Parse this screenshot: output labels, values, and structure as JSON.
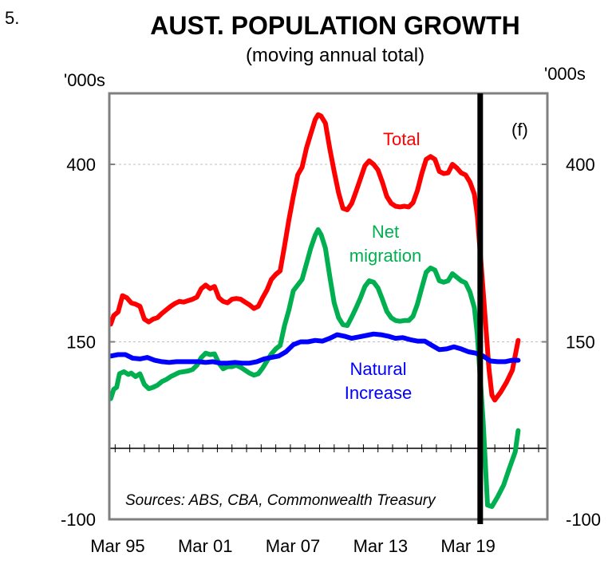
{
  "chart_number": "5.",
  "chart_data": {
    "type": "line",
    "title": "AUST. POPULATION GROWTH",
    "subtitle": "(moving annual total)",
    "y_unit_left": "'000s",
    "y_unit_right": "'000s",
    "ylim": [
      -100,
      500
    ],
    "xlim": [
      1994.6,
      2024.6
    ],
    "y_ticks": [
      -100,
      150,
      400
    ],
    "y_tick_labels": [
      "-100",
      "150",
      "400"
    ],
    "x_ticks": [
      1995.17,
      2001.17,
      2007.17,
      2013.17,
      2019.17
    ],
    "x_tick_labels": [
      "Mar 95",
      "Mar 01",
      "Mar 07",
      "Mar 13",
      "Mar 19"
    ],
    "grid": "horizontal dotted at 150 and 400",
    "zero_line": 0,
    "forecast_line_x": 2020.0,
    "forecast_label": "(f)",
    "source": "Sources: ABS, CBA, Commonwealth Treasury",
    "series": [
      {
        "name": "Total",
        "label": "Total",
        "color": "#ff0000",
        "points": [
          [
            1994.7,
            175
          ],
          [
            1994.9,
            187
          ],
          [
            1995.2,
            192
          ],
          [
            1995.5,
            215
          ],
          [
            1995.8,
            212
          ],
          [
            1996.1,
            205
          ],
          [
            1996.4,
            203
          ],
          [
            1996.7,
            200
          ],
          [
            1997.0,
            182
          ],
          [
            1997.3,
            178
          ],
          [
            1997.6,
            182
          ],
          [
            1997.9,
            184
          ],
          [
            1998.2,
            190
          ],
          [
            1998.5,
            195
          ],
          [
            1998.8,
            200
          ],
          [
            1999.1,
            204
          ],
          [
            1999.4,
            207
          ],
          [
            1999.7,
            206
          ],
          [
            2000.0,
            208
          ],
          [
            2000.3,
            210
          ],
          [
            2000.6,
            213
          ],
          [
            2000.9,
            225
          ],
          [
            2001.2,
            230
          ],
          [
            2001.5,
            225
          ],
          [
            2001.8,
            228
          ],
          [
            2002.1,
            212
          ],
          [
            2002.4,
            207
          ],
          [
            2002.7,
            205
          ],
          [
            2003.0,
            210
          ],
          [
            2003.3,
            211
          ],
          [
            2003.6,
            210
          ],
          [
            2003.9,
            206
          ],
          [
            2004.2,
            202
          ],
          [
            2004.5,
            197
          ],
          [
            2004.8,
            200
          ],
          [
            2005.1,
            212
          ],
          [
            2005.4,
            223
          ],
          [
            2005.7,
            238
          ],
          [
            2006.0,
            245
          ],
          [
            2006.3,
            250
          ],
          [
            2006.6,
            285
          ],
          [
            2006.9,
            322
          ],
          [
            2007.2,
            355
          ],
          [
            2007.5,
            385
          ],
          [
            2007.8,
            396
          ],
          [
            2008.1,
            423
          ],
          [
            2008.4,
            443
          ],
          [
            2008.7,
            463
          ],
          [
            2008.9,
            470
          ],
          [
            2009.1,
            468
          ],
          [
            2009.4,
            458
          ],
          [
            2009.7,
            422
          ],
          [
            2010.0,
            390
          ],
          [
            2010.3,
            360
          ],
          [
            2010.6,
            338
          ],
          [
            2010.9,
            336
          ],
          [
            2011.2,
            345
          ],
          [
            2011.5,
            362
          ],
          [
            2011.8,
            380
          ],
          [
            2012.1,
            398
          ],
          [
            2012.4,
            405
          ],
          [
            2012.7,
            400
          ],
          [
            2013.0,
            392
          ],
          [
            2013.3,
            375
          ],
          [
            2013.6,
            355
          ],
          [
            2013.9,
            345
          ],
          [
            2014.2,
            341
          ],
          [
            2014.5,
            340
          ],
          [
            2014.8,
            341
          ],
          [
            2015.1,
            340
          ],
          [
            2015.4,
            346
          ],
          [
            2015.7,
            363
          ],
          [
            2016.0,
            387
          ],
          [
            2016.3,
            407
          ],
          [
            2016.6,
            411
          ],
          [
            2016.9,
            407
          ],
          [
            2017.2,
            390
          ],
          [
            2017.5,
            387
          ],
          [
            2017.8,
            388
          ],
          [
            2018.1,
            400
          ],
          [
            2018.4,
            395
          ],
          [
            2018.7,
            388
          ],
          [
            2019.0,
            385
          ],
          [
            2019.3,
            375
          ],
          [
            2019.6,
            358
          ],
          [
            2019.8,
            328
          ],
          [
            2020.2,
            222
          ],
          [
            2020.6,
            112
          ],
          [
            2020.8,
            75
          ],
          [
            2021.0,
            68
          ],
          [
            2021.4,
            79
          ],
          [
            2021.8,
            93
          ],
          [
            2022.2,
            110
          ],
          [
            2022.6,
            152
          ]
        ]
      },
      {
        "name": "Net migration",
        "label_line1": "Net",
        "label_line2": "migration",
        "color": "#00b050",
        "points": [
          [
            1994.7,
            70
          ],
          [
            1994.9,
            83
          ],
          [
            1995.1,
            86
          ],
          [
            1995.3,
            105
          ],
          [
            1995.6,
            108
          ],
          [
            1995.9,
            104
          ],
          [
            1996.1,
            106
          ],
          [
            1996.4,
            101
          ],
          [
            1996.7,
            105
          ],
          [
            1997.0,
            90
          ],
          [
            1997.3,
            84
          ],
          [
            1997.6,
            86
          ],
          [
            1997.9,
            89
          ],
          [
            1998.2,
            94
          ],
          [
            1998.5,
            97
          ],
          [
            1998.8,
            101
          ],
          [
            1999.1,
            104
          ],
          [
            1999.4,
            107
          ],
          [
            1999.7,
            108
          ],
          [
            2000.0,
            109
          ],
          [
            2000.3,
            111
          ],
          [
            2000.6,
            117
          ],
          [
            2000.9,
            128
          ],
          [
            2001.2,
            134
          ],
          [
            2001.5,
            132
          ],
          [
            2001.8,
            133
          ],
          [
            2002.1,
            120
          ],
          [
            2002.4,
            112
          ],
          [
            2002.7,
            115
          ],
          [
            2003.0,
            115
          ],
          [
            2003.3,
            117
          ],
          [
            2003.6,
            114
          ],
          [
            2003.9,
            110
          ],
          [
            2004.2,
            106
          ],
          [
            2004.5,
            103
          ],
          [
            2004.8,
            105
          ],
          [
            2005.1,
            113
          ],
          [
            2005.4,
            123
          ],
          [
            2005.7,
            133
          ],
          [
            2006.0,
            140
          ],
          [
            2006.3,
            145
          ],
          [
            2006.6,
            173
          ],
          [
            2006.9,
            195
          ],
          [
            2007.2,
            222
          ],
          [
            2007.5,
            230
          ],
          [
            2007.8,
            238
          ],
          [
            2008.1,
            260
          ],
          [
            2008.4,
            282
          ],
          [
            2008.7,
            300
          ],
          [
            2008.9,
            308
          ],
          [
            2009.1,
            301
          ],
          [
            2009.4,
            282
          ],
          [
            2009.7,
            242
          ],
          [
            2010.0,
            205
          ],
          [
            2010.3,
            184
          ],
          [
            2010.6,
            174
          ],
          [
            2010.9,
            173
          ],
          [
            2011.2,
            185
          ],
          [
            2011.5,
            198
          ],
          [
            2011.8,
            212
          ],
          [
            2012.1,
            228
          ],
          [
            2012.4,
            236
          ],
          [
            2012.7,
            234
          ],
          [
            2013.0,
            226
          ],
          [
            2013.3,
            210
          ],
          [
            2013.6,
            193
          ],
          [
            2013.9,
            184
          ],
          [
            2014.2,
            180
          ],
          [
            2014.5,
            179
          ],
          [
            2014.8,
            180
          ],
          [
            2015.1,
            180
          ],
          [
            2015.4,
            186
          ],
          [
            2015.7,
            203
          ],
          [
            2016.0,
            226
          ],
          [
            2016.3,
            248
          ],
          [
            2016.6,
            254
          ],
          [
            2016.9,
            251
          ],
          [
            2017.2,
            236
          ],
          [
            2017.5,
            234
          ],
          [
            2017.8,
            236
          ],
          [
            2018.1,
            246
          ],
          [
            2018.4,
            241
          ],
          [
            2018.7,
            236
          ],
          [
            2019.0,
            233
          ],
          [
            2019.3,
            220
          ],
          [
            2019.6,
            198
          ],
          [
            2019.8,
            160
          ],
          [
            2020.2,
            38
          ],
          [
            2020.5,
            -80
          ],
          [
            2020.8,
            -82
          ],
          [
            2021.2,
            -68
          ],
          [
            2021.6,
            -52
          ],
          [
            2022.0,
            -28
          ],
          [
            2022.4,
            -5
          ],
          [
            2022.6,
            25
          ]
        ]
      },
      {
        "name": "Natural Increase",
        "label_line1": "Natural",
        "label_line2": "Increase",
        "color": "#0000ff",
        "points": [
          [
            1994.7,
            130
          ],
          [
            1995.2,
            132
          ],
          [
            1995.7,
            132
          ],
          [
            1996.2,
            127
          ],
          [
            1996.7,
            126
          ],
          [
            1997.2,
            128
          ],
          [
            1997.7,
            124
          ],
          [
            1998.2,
            122
          ],
          [
            1998.7,
            121
          ],
          [
            1999.2,
            122
          ],
          [
            1999.7,
            122
          ],
          [
            2000.2,
            122
          ],
          [
            2000.7,
            122
          ],
          [
            2001.2,
            121
          ],
          [
            2001.7,
            122
          ],
          [
            2002.2,
            120
          ],
          [
            2002.7,
            120
          ],
          [
            2003.2,
            121
          ],
          [
            2003.7,
            120
          ],
          [
            2004.2,
            120
          ],
          [
            2004.7,
            122
          ],
          [
            2005.2,
            126
          ],
          [
            2005.7,
            128
          ],
          [
            2006.2,
            130
          ],
          [
            2006.7,
            136
          ],
          [
            2007.2,
            146
          ],
          [
            2007.7,
            150
          ],
          [
            2008.2,
            150
          ],
          [
            2008.7,
            152
          ],
          [
            2009.2,
            151
          ],
          [
            2009.7,
            155
          ],
          [
            2010.2,
            160
          ],
          [
            2010.7,
            158
          ],
          [
            2011.2,
            155
          ],
          [
            2011.7,
            157
          ],
          [
            2012.2,
            159
          ],
          [
            2012.7,
            161
          ],
          [
            2013.2,
            160
          ],
          [
            2013.7,
            158
          ],
          [
            2014.2,
            155
          ],
          [
            2014.7,
            156
          ],
          [
            2015.2,
            153
          ],
          [
            2015.7,
            151
          ],
          [
            2016.2,
            151
          ],
          [
            2016.7,
            145
          ],
          [
            2017.2,
            139
          ],
          [
            2017.7,
            140
          ],
          [
            2018.2,
            143
          ],
          [
            2018.7,
            140
          ],
          [
            2019.2,
            136
          ],
          [
            2019.7,
            134
          ],
          [
            2020.2,
            130
          ],
          [
            2020.7,
            123
          ],
          [
            2021.2,
            122
          ],
          [
            2021.7,
            122
          ],
          [
            2022.2,
            124
          ],
          [
            2022.6,
            124
          ]
        ]
      }
    ]
  }
}
